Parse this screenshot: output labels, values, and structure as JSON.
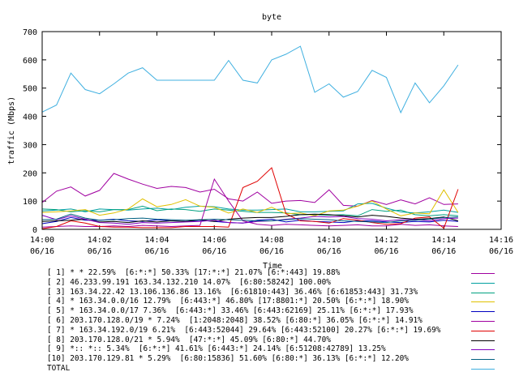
{
  "chart_data": {
    "type": "line",
    "title": "byte",
    "xlabel": "Time",
    "ylabel": "traffic (Mbps)",
    "x_ticks": [
      {
        "time": "14:00",
        "date": "06/16"
      },
      {
        "time": "14:02",
        "date": "06/16"
      },
      {
        "time": "14:04",
        "date": "06/16"
      },
      {
        "time": "14:06",
        "date": "06/16"
      },
      {
        "time": "14:08",
        "date": "06/16"
      },
      {
        "time": "14:10",
        "date": "06/16"
      },
      {
        "time": "14:12",
        "date": "06/16"
      },
      {
        "time": "14:14",
        "date": "06/16"
      },
      {
        "time": "14:16",
        "date": "06/16"
      }
    ],
    "xlim": [
      "14:00",
      "14:16"
    ],
    "ylim": [
      0,
      700
    ],
    "y_ticks": [
      0,
      100,
      200,
      300,
      400,
      500,
      600,
      700
    ],
    "x": [
      "14:00:00",
      "14:00:30",
      "14:01:00",
      "14:01:30",
      "14:02:00",
      "14:02:30",
      "14:03:00",
      "14:03:30",
      "14:04:00",
      "14:04:30",
      "14:05:00",
      "14:05:30",
      "14:06:00",
      "14:06:30",
      "14:07:00",
      "14:07:30",
      "14:08:00",
      "14:08:30",
      "14:09:00",
      "14:09:30",
      "14:10:00",
      "14:10:30",
      "14:11:00",
      "14:11:30",
      "14:12:00",
      "14:12:30",
      "14:13:00",
      "14:13:30",
      "14:14:00",
      "14:14:30"
    ],
    "grid": false,
    "legend_position": "bottom",
    "series": [
      {
        "name": "[ 1] * * 22.59%  [6:*:*] 50.33% [17:*:*] 21.07% [6:*:443] 19.88%",
        "color": "#a000a0",
        "values": [
          95,
          135,
          150,
          118,
          138,
          198,
          178,
          160,
          145,
          152,
          148,
          132,
          142,
          108,
          100,
          132,
          92,
          100,
          102,
          95,
          140,
          85,
          82,
          102,
          88,
          104,
          90,
          112,
          88,
          90
        ]
      },
      {
        "name": "[ 2] 46.233.99.191 163.34.132.210 14.07%  [6:80:58242] 100.00%",
        "color": "#00a0a0",
        "values": [
          65,
          68,
          72,
          62,
          72,
          70,
          68,
          72,
          75,
          70,
          78,
          82,
          80,
          72,
          68,
          68,
          70,
          72,
          62,
          62,
          64,
          65,
          90,
          92,
          75,
          62,
          58,
          62,
          68,
          60
        ]
      },
      {
        "name": "[ 3] 163.34.22.42 13.106.136.86 13.16%  [6:61810:443] 36.46% [6:61853:443] 31.73%",
        "color": "#00a080",
        "values": [
          72,
          70,
          62,
          66,
          62,
          70,
          70,
          82,
          66,
          72,
          70,
          64,
          72,
          68,
          64,
          60,
          60,
          58,
          52,
          52,
          50,
          52,
          48,
          70,
          64,
          68,
          52,
          48,
          52,
          48
        ]
      },
      {
        "name": "[ 4] * 163.34.0.0/16 12.79%  [6:443:*] 46.80% [17:8801:*] 20.50% [6:*:*] 18.90%",
        "color": "#e0c000",
        "values": [
          60,
          62,
          65,
          70,
          50,
          58,
          72,
          108,
          80,
          88,
          105,
          82,
          78,
          58,
          72,
          60,
          78,
          55,
          58,
          48,
          65,
          68,
          82,
          100,
          72,
          48,
          58,
          55,
          140,
          60
        ]
      },
      {
        "name": "[ 5] * 163.34.0.0/17 7.36%  [6:443:*] 33.46% [6:443:62169] 25.11% [6:*:*] 17.93%",
        "color": "#0000c0",
        "values": [
          20,
          28,
          42,
          32,
          32,
          36,
          30,
          28,
          34,
          30,
          28,
          32,
          28,
          24,
          22,
          32,
          36,
          26,
          32,
          28,
          26,
          24,
          30,
          30,
          26,
          24,
          28,
          26,
          32,
          28
        ]
      },
      {
        "name": "[ 6] 203.170.128.0/19 * 7.24%  [1:2048:2048] 38.52% [6:80:*] 36.05% [6:*:*] 14.91%",
        "color": "#a000a0",
        "values": [
          8,
          10,
          12,
          10,
          10,
          12,
          10,
          14,
          12,
          10,
          12,
          14,
          178,
          100,
          30,
          18,
          14,
          18,
          16,
          14,
          12,
          14,
          16,
          12,
          12,
          18,
          14,
          16,
          12,
          10
        ]
      },
      {
        "name": "[ 7] * 163.34.192.0/19 6.21%  [6:443:52044] 29.64% [6:443:52100] 20.27% [6:*:*] 19.69%",
        "color": "#e00000",
        "values": [
          2,
          10,
          30,
          22,
          10,
          8,
          8,
          6,
          6,
          6,
          10,
          10,
          10,
          8,
          148,
          170,
          218,
          55,
          30,
          28,
          22,
          38,
          32,
          24,
          18,
          20,
          40,
          44,
          4,
          142
        ]
      },
      {
        "name": "[ 8] 203.170.128.0/21 * 5.94%  [47:*:*] 45.09% [6:80:*] 44.70%",
        "color": "#000000",
        "values": [
          28,
          30,
          32,
          36,
          26,
          28,
          24,
          30,
          26,
          30,
          28,
          34,
          28,
          36,
          40,
          42,
          42,
          46,
          52,
          54,
          52,
          48,
          44,
          50,
          46,
          40,
          36,
          38,
          44,
          30
        ]
      },
      {
        "name": "[ 9] *:: *:: 5.34%  [6:*:*] 41.61% [6:443:*] 24.14% [6:51208:42789] 13.25%",
        "color": "#8000c0",
        "values": [
          50,
          34,
          48,
          36,
          24,
          22,
          18,
          24,
          22,
          24,
          26,
          28,
          32,
          24,
          22,
          28,
          30,
          36,
          40,
          46,
          44,
          46,
          38,
          36,
          30,
          34,
          34,
          30,
          38,
          40
        ]
      },
      {
        "name": "[10] 203.170.129.81 * 5.29%  [6:80:15836] 51.60% [6:80:*] 36.13% [6:*:*] 12.20%",
        "color": "#006080",
        "values": [
          34,
          36,
          54,
          40,
          32,
          34,
          38,
          40,
          36,
          34,
          32,
          34,
          36,
          34,
          32,
          30,
          30,
          34,
          38,
          36,
          34,
          30,
          28,
          26,
          24,
          30,
          32,
          36,
          42,
          44
        ]
      },
      {
        "name": "TOTAL",
        "color": "#40b0e0",
        "values": [
          415,
          440,
          553,
          495,
          480,
          515,
          553,
          572,
          528,
          528,
          528,
          528,
          528,
          598,
          528,
          518,
          600,
          620,
          648,
          485,
          515,
          468,
          488,
          563,
          538,
          413,
          518,
          448,
          508,
          582
        ]
      }
    ]
  }
}
